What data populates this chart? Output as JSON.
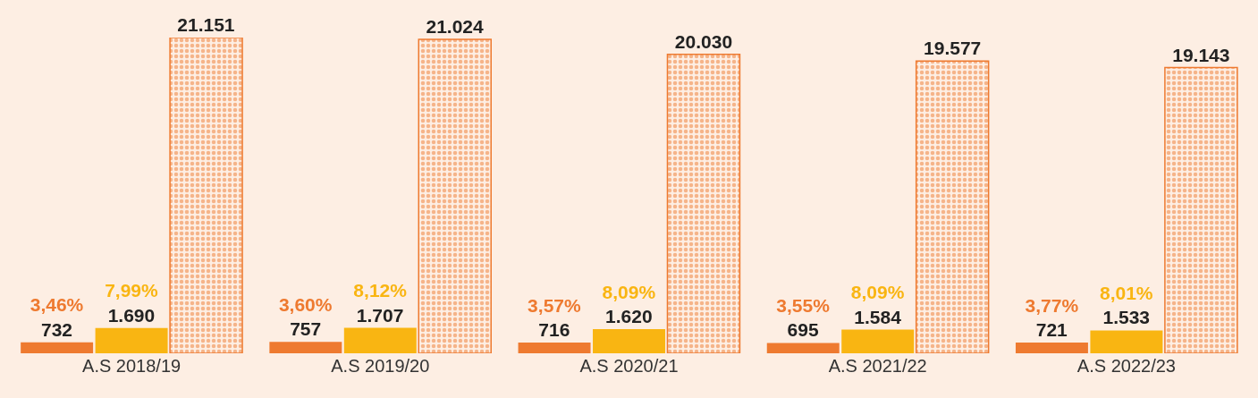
{
  "chart_data": {
    "type": "bar",
    "categories": [
      "A.S 2018/19",
      "A.S 2019/20",
      "A.S 2020/21",
      "A.S 2021/22",
      "A.S 2022/23"
    ],
    "series": [
      {
        "color": "#ee7a30",
        "values": [
          732,
          757,
          716,
          695,
          721
        ],
        "value_labels": [
          "3,46%\n732",
          "3,60%\n757",
          "3,57%\n716",
          "3,55%\n695",
          "3,77%\n721"
        ]
      },
      {
        "color": "#f9b512",
        "values": [
          1690,
          1707,
          1620,
          1584,
          1533
        ],
        "value_labels": [
          "7,99%\n1.690",
          "8,12%\n1.707",
          "8,09%\n1.620",
          "8,09%\n1.584",
          "8,01%\n1.533"
        ]
      },
      {
        "color": "#ee7a30",
        "values": [
          21151,
          21024,
          20030,
          19577,
          19143
        ],
        "value_labels": [
          "21.151",
          "21.024",
          "20.030",
          "19.577",
          "19.143"
        ]
      }
    ],
    "grid": false
  }
}
